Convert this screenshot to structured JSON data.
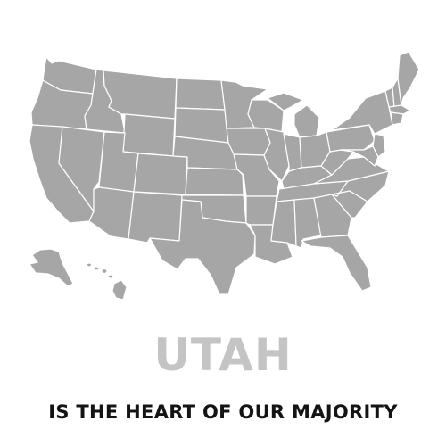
{
  "map": {
    "fill_color": "#a6a6a6",
    "border_color": "#ffffff",
    "background_color": "#ffffff"
  },
  "headline": {
    "text": "UTAH",
    "color": "#c4c4c4"
  },
  "tagline": {
    "text": "IS THE HEART OF OUR MAJORITY",
    "color": "#141414"
  }
}
